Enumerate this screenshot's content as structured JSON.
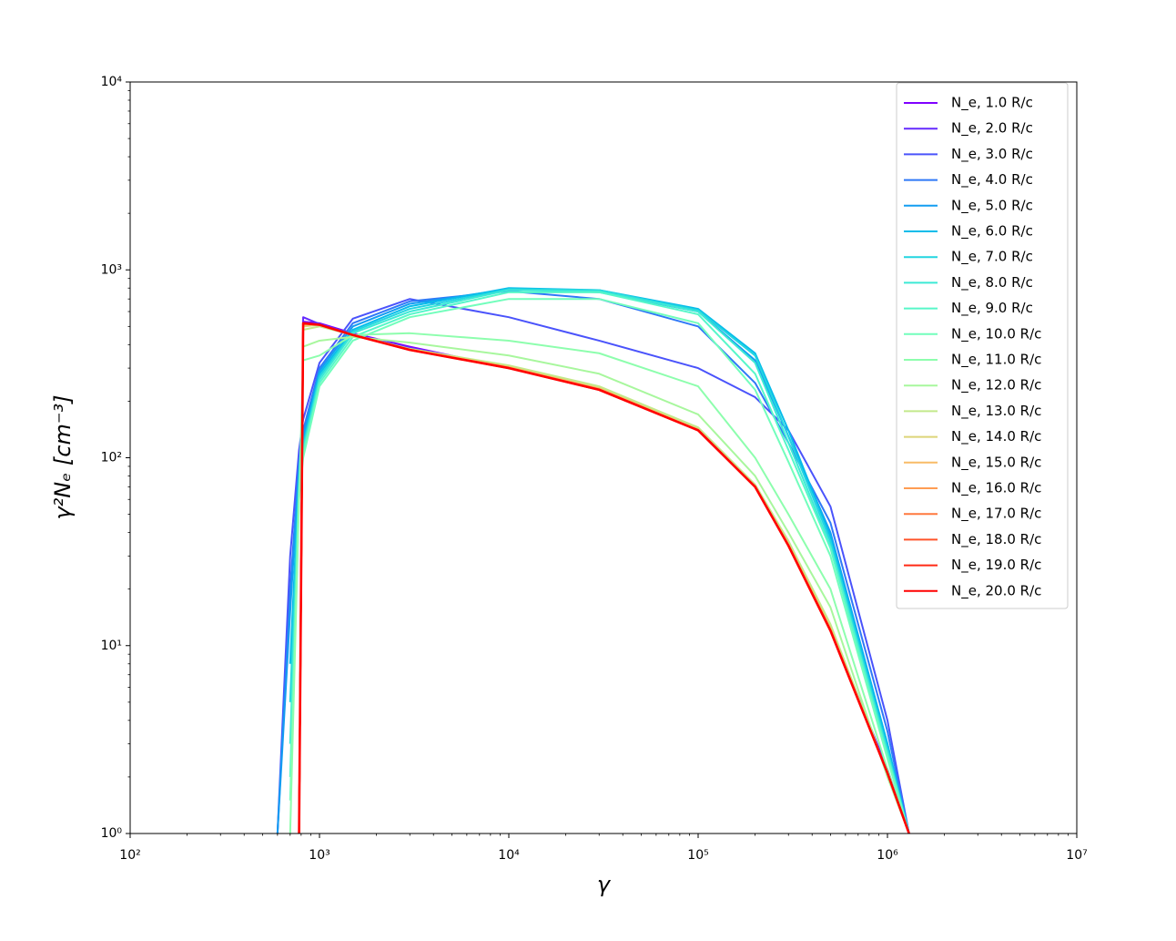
{
  "chart_data": {
    "type": "line",
    "x_label": "γ",
    "y_label": "γ²Nₑ [cm⁻³]",
    "xscale": "log",
    "yscale": "log",
    "xlim": [
      100,
      10000000
    ],
    "ylim": [
      1,
      10000
    ],
    "xticks": [
      {
        "value": 100,
        "label": "10²"
      },
      {
        "value": 1000,
        "label": "10³"
      },
      {
        "value": 10000,
        "label": "10⁴"
      },
      {
        "value": 100000,
        "label": "10⁵"
      },
      {
        "value": 1000000,
        "label": "10⁶"
      },
      {
        "value": 10000000,
        "label": "10⁷"
      }
    ],
    "yticks": [
      {
        "value": 1,
        "label": "10⁰"
      },
      {
        "value": 10,
        "label": "10¹"
      },
      {
        "value": 100,
        "label": "10²"
      },
      {
        "value": 1000,
        "label": "10³"
      },
      {
        "value": 10000,
        "label": "10⁴"
      }
    ],
    "legend": "upper right",
    "x": [
      600,
      700,
      780,
      820,
      1000,
      1500,
      3000,
      10000,
      30000,
      100000,
      200000,
      300000,
      500000,
      1000000,
      1300000
    ],
    "series": [
      {
        "name": "N_e, 1.0 R/c",
        "color": "#8000ff",
        "values": [
          null,
          null,
          1,
          530,
          520,
          460,
          390,
          300,
          230,
          140,
          70,
          35,
          12,
          2.2,
          1
        ]
      },
      {
        "name": "N_e, 2.0 R/c",
        "color": "#652afe",
        "values": [
          null,
          null,
          1,
          560,
          515,
          455,
          385,
          300,
          230,
          140,
          70,
          36,
          12.5,
          2.2,
          1
        ]
      },
      {
        "name": "N_e, 3.0 R/c",
        "color": "#4a53fb",
        "values": [
          1,
          30,
          110,
          160,
          320,
          550,
          700,
          560,
          420,
          300,
          210,
          140,
          55,
          4,
          1
        ]
      },
      {
        "name": "N_e, 4.0 R/c",
        "color": "#2f79f7",
        "values": [
          1,
          20,
          95,
          140,
          300,
          520,
          680,
          770,
          700,
          500,
          250,
          120,
          45,
          3.5,
          1
        ]
      },
      {
        "name": "N_e, 5.0 R/c",
        "color": "#149df1",
        "values": [
          1,
          15,
          90,
          130,
          290,
          500,
          660,
          790,
          760,
          600,
          330,
          130,
          40,
          3,
          1
        ]
      },
      {
        "name": "N_e, 6.0 R/c",
        "color": "#07bcea",
        "values": [
          null,
          8,
          80,
          120,
          280,
          480,
          640,
          800,
          780,
          620,
          360,
          140,
          38,
          3,
          1
        ]
      },
      {
        "name": "N_e, 7.0 R/c",
        "color": "#22d5e0",
        "values": [
          null,
          5,
          75,
          115,
          270,
          470,
          620,
          790,
          780,
          610,
          350,
          130,
          36,
          2.8,
          1
        ]
      },
      {
        "name": "N_e, 8.0 R/c",
        "color": "#3ce9d5",
        "values": [
          null,
          3,
          70,
          110,
          260,
          460,
          600,
          780,
          770,
          600,
          320,
          120,
          34,
          2.7,
          1
        ]
      },
      {
        "name": "N_e, 9.0 R/c",
        "color": "#57f7c9",
        "values": [
          null,
          2,
          65,
          105,
          250,
          440,
          580,
          760,
          760,
          580,
          280,
          110,
          33,
          2.6,
          1
        ]
      },
      {
        "name": "N_e, 10.0 R/c",
        "color": "#72febc",
        "values": [
          null,
          1.5,
          60,
          100,
          240,
          420,
          560,
          700,
          700,
          520,
          230,
          95,
          30,
          2.5,
          1
        ]
      },
      {
        "name": "N_e, 11.0 R/c",
        "color": "#8dfead",
        "values": [
          null,
          1,
          60,
          330,
          350,
          450,
          460,
          420,
          360,
          240,
          100,
          50,
          20,
          2.2,
          1
        ]
      },
      {
        "name": "N_e, 12.0 R/c",
        "color": "#a8f79d",
        "values": [
          null,
          null,
          1,
          390,
          420,
          440,
          410,
          350,
          280,
          170,
          80,
          40,
          16,
          2,
          1
        ]
      },
      {
        "name": "N_e, 13.0 R/c",
        "color": "#c3e98b",
        "values": [
          null,
          null,
          1,
          480,
          500,
          450,
          380,
          310,
          240,
          145,
          72,
          36,
          13,
          2.1,
          1
        ]
      },
      {
        "name": "N_e, 14.0 R/c",
        "color": "#ddd579",
        "values": [
          null,
          null,
          1,
          500,
          510,
          452,
          378,
          305,
          235,
          142,
          71,
          35,
          12.5,
          2.1,
          1
        ]
      },
      {
        "name": "N_e, 15.0 R/c",
        "color": "#f8bc67",
        "values": [
          null,
          null,
          1,
          510,
          510,
          451,
          377,
          303,
          233,
          141,
          70,
          34.5,
          12.3,
          2.1,
          1
        ]
      },
      {
        "name": "N_e, 16.0 R/c",
        "color": "#ff9d53",
        "values": [
          null,
          null,
          1,
          515,
          510,
          450,
          376,
          302,
          232,
          140,
          70,
          34,
          12.2,
          2.1,
          1
        ]
      },
      {
        "name": "N_e, 17.0 R/c",
        "color": "#ff793f",
        "values": [
          null,
          null,
          1,
          518,
          510,
          450,
          375,
          301,
          231,
          140,
          70,
          34,
          12.1,
          2.1,
          1
        ]
      },
      {
        "name": "N_e, 18.0 R/c",
        "color": "#ff532a",
        "values": [
          null,
          null,
          1,
          519,
          510,
          450,
          375,
          300,
          230,
          140,
          70,
          34,
          12,
          2.1,
          1
        ]
      },
      {
        "name": "N_e, 19.0 R/c",
        "color": "#ff2a15",
        "values": [
          null,
          null,
          1,
          520,
          510,
          450,
          375,
          300,
          230,
          140,
          70,
          34,
          12,
          2.1,
          1
        ]
      },
      {
        "name": "N_e, 20.0 R/c",
        "color": "#ff0000",
        "values": [
          null,
          null,
          1,
          520,
          510,
          450,
          375,
          300,
          230,
          140,
          70,
          34,
          12,
          2.1,
          1
        ]
      }
    ]
  }
}
